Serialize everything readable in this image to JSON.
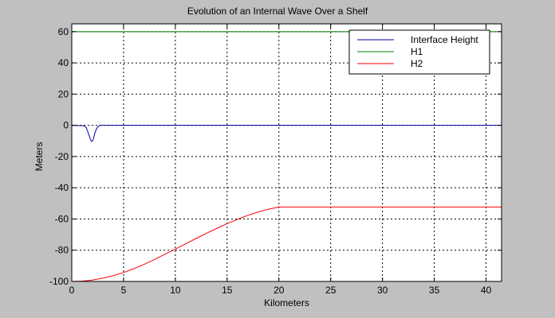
{
  "chart_data": {
    "type": "line",
    "title": "Evolution of an Internal Wave Over a Shelf",
    "xlabel": "Kilometers",
    "ylabel": "Meters",
    "xlim": [
      0,
      41.5
    ],
    "ylim": [
      -100,
      65
    ],
    "xticks": [
      0,
      5,
      10,
      15,
      20,
      25,
      30,
      35,
      40
    ],
    "yticks": [
      -100,
      -80,
      -60,
      -40,
      -20,
      0,
      20,
      40,
      60
    ],
    "grid": true,
    "legend_position": "top-right",
    "series": [
      {
        "name": "Interface Height",
        "color": "#0000a0",
        "x": [
          0,
          1.2,
          1.4,
          1.6,
          1.8,
          1.9,
          2.0,
          2.1,
          2.2,
          2.4,
          2.6,
          2.8,
          41.5
        ],
        "y": [
          0,
          -0.3,
          -1.5,
          -5,
          -9,
          -10.3,
          -10,
          -8.5,
          -5.5,
          -2,
          -0.4,
          0,
          0
        ]
      },
      {
        "name": "H1",
        "color": "#008000",
        "x": [
          0,
          41.5
        ],
        "y": [
          60,
          60
        ]
      },
      {
        "name": "H2",
        "color": "#ff0000",
        "x": [
          0,
          1,
          2,
          3,
          4,
          5,
          6,
          7,
          8,
          9,
          10,
          11,
          12,
          13,
          14,
          15,
          16,
          17,
          18,
          19,
          20,
          41.5
        ],
        "y": [
          -100,
          -99.8,
          -99.1,
          -97.9,
          -96.3,
          -94.3,
          -91.8,
          -89.0,
          -85.9,
          -82.6,
          -79.3,
          -75.9,
          -72.5,
          -69.2,
          -66.0,
          -63.0,
          -60.2,
          -57.7,
          -55.5,
          -53.7,
          -52.3,
          -52.3
        ]
      }
    ]
  }
}
